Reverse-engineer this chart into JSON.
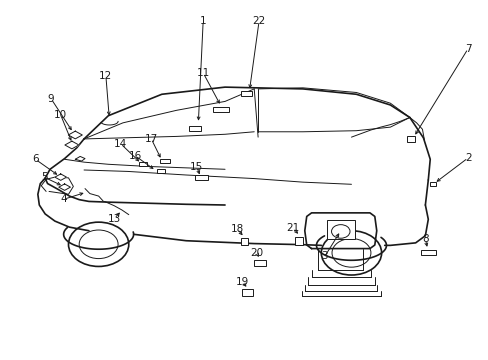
{
  "background_color": "#ffffff",
  "line_color": "#1a1a1a",
  "label_color": "#1a1a1a",
  "fig_width": 4.89,
  "fig_height": 3.6,
  "dpi": 100,
  "labels_data": {
    "1": [
      0.415,
      0.945,
      0.405,
      0.658
    ],
    "22": [
      0.53,
      0.945,
      0.51,
      0.748
    ],
    "7": [
      0.96,
      0.868,
      0.848,
      0.62
    ],
    "11": [
      0.415,
      0.8,
      0.452,
      0.706
    ],
    "12": [
      0.215,
      0.79,
      0.222,
      0.672
    ],
    "9": [
      0.102,
      0.728,
      0.148,
      0.632
    ],
    "10": [
      0.122,
      0.682,
      0.146,
      0.602
    ],
    "2": [
      0.96,
      0.562,
      0.89,
      0.49
    ],
    "14": [
      0.245,
      0.602,
      0.288,
      0.546
    ],
    "17": [
      0.308,
      0.616,
      0.33,
      0.555
    ],
    "16": [
      0.275,
      0.568,
      0.318,
      0.526
    ],
    "6": [
      0.07,
      0.558,
      0.12,
      0.51
    ],
    "5": [
      0.088,
      0.508,
      0.128,
      0.482
    ],
    "15": [
      0.402,
      0.536,
      0.41,
      0.508
    ],
    "4": [
      0.128,
      0.446,
      0.175,
      0.466
    ],
    "13": [
      0.232,
      0.392,
      0.248,
      0.415
    ],
    "21": [
      0.6,
      0.366,
      0.614,
      0.343
    ],
    "18": [
      0.485,
      0.363,
      0.5,
      0.339
    ],
    "20": [
      0.525,
      0.296,
      0.532,
      0.277
    ],
    "19": [
      0.495,
      0.215,
      0.508,
      0.195
    ],
    "3": [
      0.665,
      0.286,
      0.698,
      0.358
    ],
    "8": [
      0.872,
      0.335,
      0.877,
      0.305
    ]
  }
}
